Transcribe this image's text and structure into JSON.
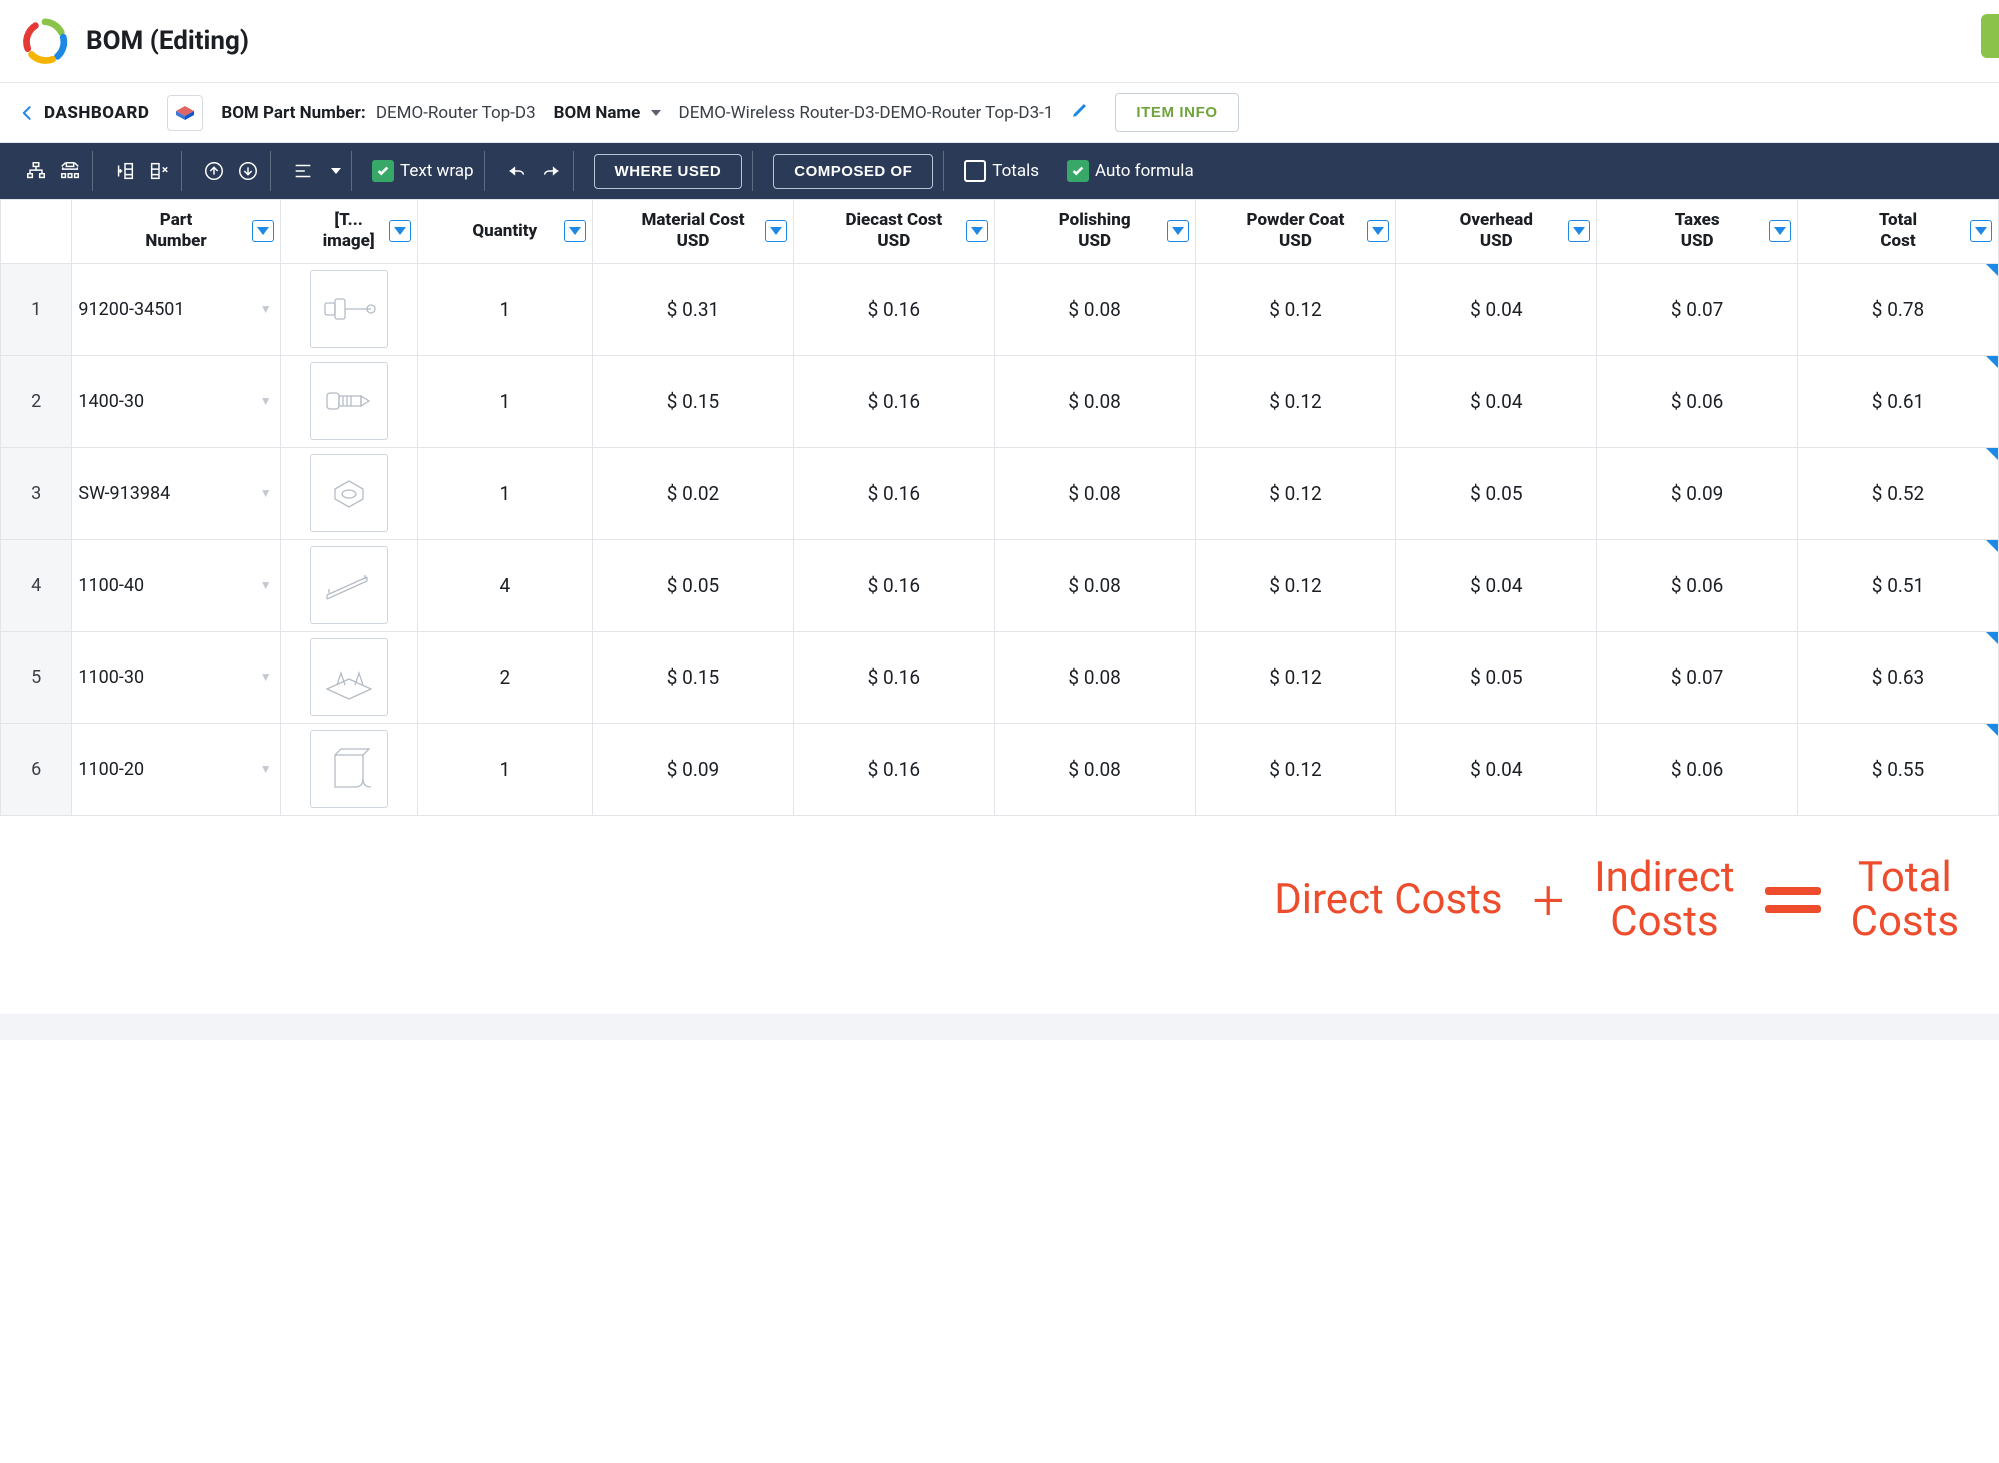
{
  "colors": {
    "toolbar_bg": "#2b3b57",
    "accent_green": "#38a869",
    "accent_blue": "#1e88e5",
    "annotation": "#ee4d2d",
    "btn_green": "#8bc34a",
    "item_info": "#6fa33b"
  },
  "header": {
    "page_title": "BOM (Editing)",
    "back_label": "DASHBOARD",
    "part_number_label": "BOM Part Number:",
    "part_number_value": "DEMO-Router Top-D3",
    "name_label": "BOM Name",
    "name_value": "DEMO-Wireless Router-D3-DEMO-Router Top-D3-1",
    "item_info_btn": "ITEM INFO"
  },
  "toolbar": {
    "text_wrap_label": "Text wrap",
    "where_used_btn": "WHERE USED",
    "composed_of_btn": "COMPOSED OF",
    "totals_label": "Totals",
    "auto_formula_label": "Auto formula",
    "text_wrap_on": true,
    "totals_on": false,
    "auto_formula_on": true
  },
  "table": {
    "columns": [
      {
        "key": "part",
        "label": "Part Number"
      },
      {
        "key": "image",
        "label": "[T... image]"
      },
      {
        "key": "qty",
        "label": "Quantity"
      },
      {
        "key": "material",
        "label": "Material Cost USD"
      },
      {
        "key": "diecast",
        "label": "Diecast Cost USD"
      },
      {
        "key": "polishing",
        "label": "Polishing USD"
      },
      {
        "key": "powder",
        "label": "Powder Coat USD"
      },
      {
        "key": "overhead",
        "label": "Overhead USD"
      },
      {
        "key": "taxes",
        "label": "Taxes USD"
      },
      {
        "key": "total",
        "label": "Total Cost"
      }
    ],
    "rows": [
      {
        "idx": "1",
        "part": "91200-34501",
        "qty": "1",
        "material": "$ 0.31",
        "diecast": "$ 0.16",
        "polishing": "$ 0.08",
        "powder": "$ 0.12",
        "overhead": "$ 0.04",
        "taxes": "$ 0.07",
        "total": "$ 0.78",
        "thumb": "shaft"
      },
      {
        "idx": "2",
        "part": "1400-30",
        "qty": "1",
        "material": "$ 0.15",
        "diecast": "$ 0.16",
        "polishing": "$ 0.08",
        "powder": "$ 0.12",
        "overhead": "$ 0.04",
        "taxes": "$ 0.06",
        "total": "$ 0.61",
        "thumb": "bolt"
      },
      {
        "idx": "3",
        "part": "SW-913984",
        "qty": "1",
        "material": "$ 0.02",
        "diecast": "$ 0.16",
        "polishing": "$ 0.08",
        "powder": "$ 0.12",
        "overhead": "$ 0.05",
        "taxes": "$ 0.09",
        "total": "$ 0.52",
        "thumb": "nut"
      },
      {
        "idx": "4",
        "part": "1100-40",
        "qty": "4",
        "material": "$ 0.05",
        "diecast": "$ 0.16",
        "polishing": "$ 0.08",
        "powder": "$ 0.12",
        "overhead": "$ 0.04",
        "taxes": "$ 0.06",
        "total": "$ 0.51",
        "thumb": "bar"
      },
      {
        "idx": "5",
        "part": "1100-30",
        "qty": "2",
        "material": "$ 0.15",
        "diecast": "$ 0.16",
        "polishing": "$ 0.08",
        "powder": "$ 0.12",
        "overhead": "$ 0.05",
        "taxes": "$ 0.07",
        "total": "$ 0.63",
        "thumb": "plate"
      },
      {
        "idx": "6",
        "part": "1100-20",
        "qty": "1",
        "material": "$ 0.09",
        "diecast": "$ 0.16",
        "polishing": "$ 0.08",
        "powder": "$ 0.12",
        "overhead": "$ 0.04",
        "taxes": "$ 0.06",
        "total": "$ 0.55",
        "thumb": "sheet"
      }
    ]
  },
  "formula": {
    "left": "Direct Costs",
    "middle_top": "Indirect",
    "middle_bottom": "Costs",
    "right_top": "Total",
    "right_bottom": "Costs"
  }
}
